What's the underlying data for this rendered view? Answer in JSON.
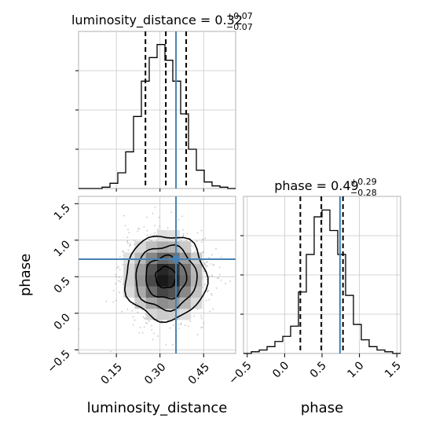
{
  "chart_data": [
    {
      "type": "histogram",
      "panel": "luminosity_distance-marginal",
      "title_param": "luminosity_distance",
      "title_value": "0.32",
      "title_plus": "+0.07",
      "title_minus": "−0.07",
      "xlim": [
        0.02,
        0.56
      ],
      "truth": 0.355,
      "quantiles": [
        0.25,
        0.32,
        0.39
      ],
      "bin_edges": [
        0.02,
        0.047,
        0.074,
        0.101,
        0.128,
        0.155,
        0.182,
        0.209,
        0.236,
        0.263,
        0.29,
        0.317,
        0.344,
        0.371,
        0.398,
        0.425,
        0.452,
        0.479,
        0.506,
        0.533,
        0.56
      ],
      "counts": [
        0,
        0,
        0,
        1,
        4,
        12,
        28,
        55,
        82,
        100,
        110,
        98,
        82,
        57,
        30,
        14,
        5,
        2,
        1,
        0
      ],
      "ymax": 120,
      "grid": true
    },
    {
      "type": "histogram",
      "panel": "phase-marginal",
      "title_param": "phase",
      "title_value": "0.49",
      "title_plus": "+0.29",
      "title_minus": "−0.28",
      "xlim": [
        -0.55,
        1.55
      ],
      "truth": 0.74,
      "quantiles": [
        0.21,
        0.49,
        0.78
      ],
      "bin_edges": [
        -0.55,
        -0.445,
        -0.34,
        -0.235,
        -0.13,
        -0.025,
        0.08,
        0.185,
        0.29,
        0.395,
        0.5,
        0.605,
        0.71,
        0.815,
        0.92,
        1.025,
        1.13,
        1.235,
        1.34,
        1.445,
        1.55
      ],
      "counts": [
        0,
        1,
        2,
        4,
        7,
        10,
        16,
        36,
        58,
        80,
        84,
        72,
        58,
        34,
        17,
        8,
        4,
        2,
        1,
        0
      ],
      "ymax": 92,
      "grid": true,
      "xticks": [
        -0.5,
        0.0,
        0.5,
        1.0,
        1.5
      ],
      "xtick_labels": [
        "−0.5",
        "0.0",
        "0.5",
        "1.0",
        "1.5"
      ],
      "xlabel": "phase"
    },
    {
      "type": "heatmap",
      "panel": "2d-density",
      "xlim": [
        0.02,
        0.56
      ],
      "ylim": [
        -0.55,
        1.6
      ],
      "truth": [
        0.355,
        0.74
      ],
      "mean": [
        0.32,
        0.49
      ],
      "sd": [
        0.07,
        0.29
      ],
      "xticks": [
        0.15,
        0.3,
        0.45
      ],
      "xtick_labels": [
        "0.15",
        "0.30",
        "0.45"
      ],
      "yticks": [
        -0.5,
        0.0,
        0.5,
        1.0,
        1.5
      ],
      "ytick_labels": [
        "−0.5",
        "0.0",
        "0.5",
        "1.0",
        "1.5"
      ],
      "xlabel": "luminosity_distance",
      "ylabel": "phase",
      "contour_levels_sigma": [
        0.5,
        1.0,
        1.5,
        2.0
      ],
      "grid": true
    }
  ],
  "colors": {
    "truth": "#4682b4",
    "hist": "#000000",
    "grid": "#c8c8c8",
    "axes": "#b0b0b0"
  }
}
